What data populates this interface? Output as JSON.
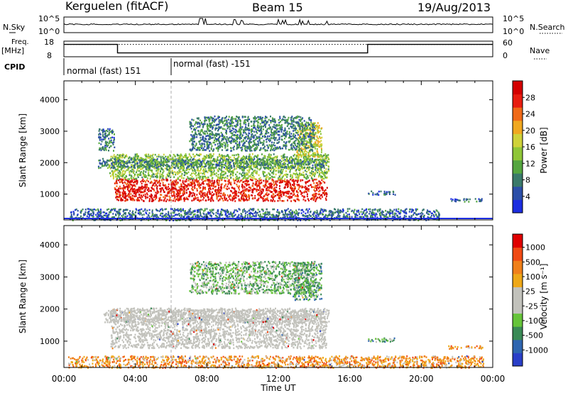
{
  "header": {
    "station": "Kerguelen (fitACF)",
    "beam": "Beam 15",
    "date": "19/Aug/2013"
  },
  "status": {
    "nsky_label": "N.Sky",
    "nsky_ticks": [
      "10^5",
      "10^0"
    ],
    "nsearch_label": "N.Search",
    "nsearch_ticks": [
      "10^5",
      "10^0"
    ],
    "freq_label": "Freq.",
    "freq_unit": "[MHz]",
    "freq_ticks": [
      "18",
      "8"
    ],
    "nave_label": "Nave",
    "nave_ticks": [
      "60",
      "0"
    ],
    "cpid_label": "CPID",
    "cpid_segments": [
      {
        "label": "normal (fast) 151",
        "start_h": 0,
        "end_h": 6
      },
      {
        "label": "normal (fast) -151",
        "start_h": 6,
        "end_h": 24
      }
    ],
    "freq_steps": [
      {
        "start_h": 0,
        "end_h": 3,
        "level": 0.82
      },
      {
        "start_h": 3,
        "end_h": 17,
        "level": 0.22
      },
      {
        "start_h": 17,
        "end_h": 24,
        "level": 0.82
      }
    ],
    "nave_level": 0.82
  },
  "chart_data": [
    {
      "type": "heatmap",
      "name": "power",
      "xlabel": "Time UT",
      "ylabel": "Slant Range [km]",
      "x_ticks": [
        "00:00",
        "04:00",
        "08:00",
        "12:00",
        "16:00",
        "20:00",
        "00:00"
      ],
      "xlim_h": [
        0,
        24
      ],
      "ylim": [
        180,
        4600
      ],
      "y_ticks": [
        1000,
        2000,
        3000,
        4000
      ],
      "colorbar_label": "Power [dB]",
      "colorbar_ticks": [
        "4",
        "8",
        "12",
        "16",
        "20",
        "24",
        "28"
      ],
      "colorbar_colors": [
        "#1c2de0",
        "#2c4fa8",
        "#3a7a6a",
        "#55a640",
        "#8fc638",
        "#cfd23a",
        "#f0a820",
        "#f06a18",
        "#e81d10",
        "#d40000"
      ],
      "regions": [
        {
          "t0": 2.8,
          "t1": 14.7,
          "r0": 800,
          "r1": 1500,
          "v": 0.88
        },
        {
          "t0": 2.5,
          "t1": 14.8,
          "r0": 1500,
          "r1": 2300,
          "v": 0.42
        },
        {
          "t0": 1.9,
          "t1": 14.6,
          "r0": 1850,
          "r1": 2150,
          "v": 0.28
        },
        {
          "t0": 13.0,
          "t1": 14.4,
          "r0": 2200,
          "r1": 3300,
          "v": 0.55
        },
        {
          "t0": 7.0,
          "t1": 14.0,
          "r0": 2400,
          "r1": 3500,
          "v": 0.25
        },
        {
          "t0": 17.0,
          "t1": 18.5,
          "r0": 1000,
          "r1": 1120,
          "v": 0.22
        },
        {
          "t0": 21.6,
          "t1": 23.4,
          "r0": 780,
          "r1": 880,
          "v": 0.18
        },
        {
          "t0": 0.3,
          "t1": 21.0,
          "r0": 190,
          "r1": 560,
          "v": 0.2
        },
        {
          "t0": 1.9,
          "t1": 2.8,
          "r0": 2400,
          "r1": 3100,
          "v": 0.22
        }
      ]
    },
    {
      "type": "heatmap",
      "name": "velocity",
      "xlabel": "Time UT",
      "ylabel": "Slant Range [km]",
      "x_ticks": [
        "00:00",
        "04:00",
        "08:00",
        "12:00",
        "16:00",
        "20:00",
        "00:00"
      ],
      "xlim_h": [
        0,
        24
      ],
      "ylim": [
        180,
        4600
      ],
      "y_ticks": [
        1000,
        2000,
        3000,
        4000
      ],
      "colorbar_label": "Velocity [m s⁻¹]",
      "colorbar_ticks": [
        "1000",
        "500",
        "100",
        "25",
        "-25",
        "-100",
        "-500",
        "-1000"
      ],
      "colorbar_colors": [
        "#2a3fc8",
        "#2f66b0",
        "#3a8a56",
        "#66c43a",
        "#c2c2bc",
        "#c2c2bc",
        "#eea818",
        "#f0801a",
        "#f04a14",
        "#e00000"
      ],
      "regions": [
        {
          "t0": 2.6,
          "t1": 14.7,
          "r0": 800,
          "r1": 2050,
          "v": 0.5
        },
        {
          "t0": 2.2,
          "t1": 14.8,
          "r0": 1600,
          "r1": 2000,
          "v": 0.52
        },
        {
          "t0": 12.8,
          "t1": 14.4,
          "r0": 2300,
          "r1": 3500,
          "v": 0.3
        },
        {
          "t0": 7.0,
          "t1": 14.0,
          "r0": 2500,
          "r1": 3500,
          "v": 0.35
        },
        {
          "t0": 17.0,
          "t1": 18.5,
          "r0": 1000,
          "r1": 1120,
          "v": 0.32
        },
        {
          "t0": 21.5,
          "t1": 23.4,
          "r0": 780,
          "r1": 880,
          "v": 0.72
        },
        {
          "t0": 0.2,
          "t1": 23.5,
          "r0": 190,
          "r1": 560,
          "v": 0.7
        }
      ]
    }
  ]
}
